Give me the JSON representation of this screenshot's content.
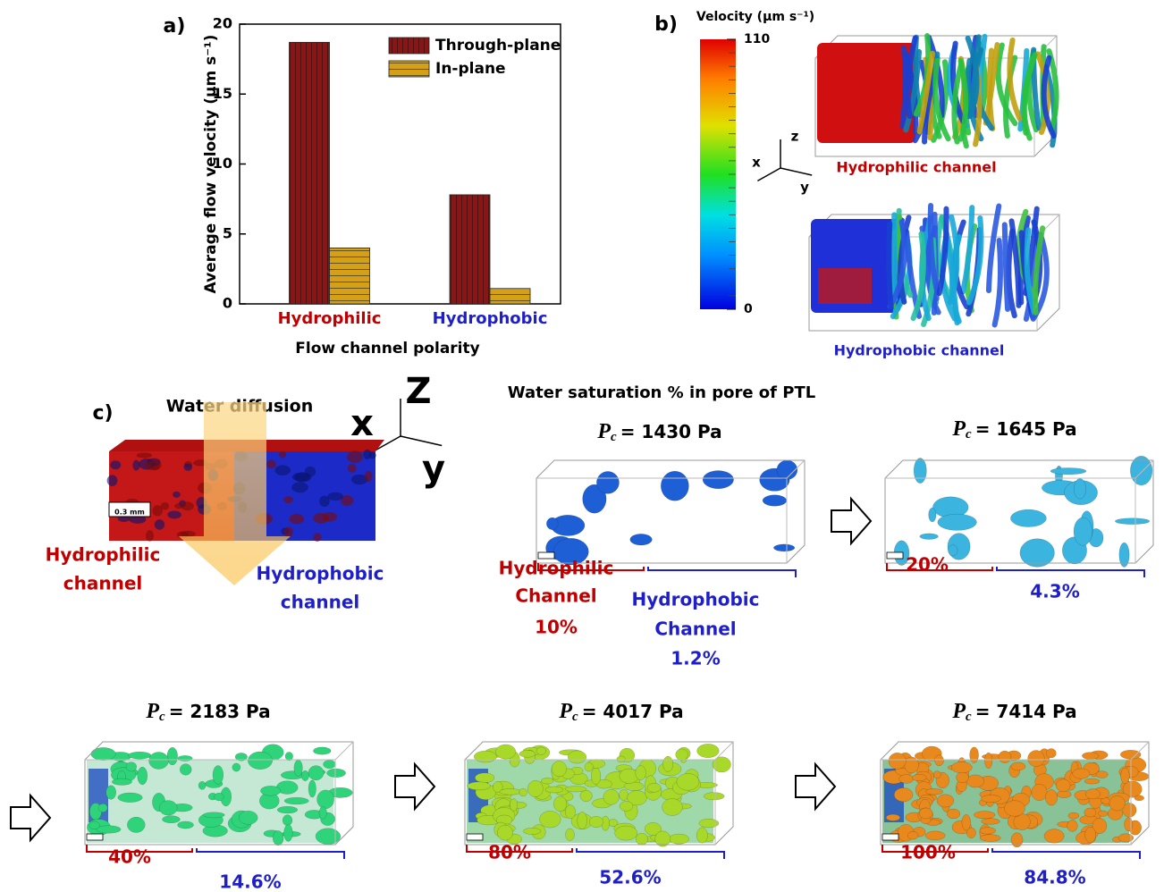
{
  "chart_data": {
    "type": "bar",
    "panel_label": "a)",
    "categories": [
      "Hydrophilic",
      "Hydrophobic"
    ],
    "category_colors": [
      "#c00000",
      "#1f1fc8"
    ],
    "series": [
      {
        "name": "Through-plane",
        "color": "#8b1414",
        "values": [
          18.7,
          7.8
        ]
      },
      {
        "name": "In-plane",
        "color": "#d4a017",
        "values": [
          4.0,
          1.1
        ]
      }
    ],
    "ylabel": "Average flow velocity (μm s⁻¹)",
    "xlabel": "Flow channel polarity",
    "ylim": [
      0,
      20
    ],
    "yticks": [
      0,
      5,
      10,
      15,
      20
    ],
    "legend": "upper-right"
  },
  "panel_b": {
    "panel_label": "b)",
    "colorbar_title": "Velocity (μm s⁻¹)",
    "colorbar_ticks": [
      0,
      110
    ],
    "axes": [
      "z",
      "x",
      "y"
    ],
    "top_label": "Hydrophilic channel",
    "bottom_label": "Hydrophobic channel"
  },
  "panel_c": {
    "panel_label": "c)",
    "diffusion_label": "Water diffusion",
    "axes": [
      "x",
      "Z",
      "y"
    ],
    "scale_label": "0.3 mm",
    "hydrophilic_label": [
      "Hydrophilic",
      "channel"
    ],
    "hydrophobic_label": [
      "Hydrophobic",
      "channel"
    ],
    "title": "Water saturation % in pore of PTL",
    "first_labels": {
      "hydrophilic": [
        "Hydrophilic",
        "Channel"
      ],
      "hydrophobic": [
        "Hydrophobic",
        "Channel"
      ]
    },
    "stages": [
      {
        "symbol": "P",
        "subscript": "c",
        "pressure": "= 1430 Pa",
        "hydrophilic": "10%",
        "hydrophobic": "1.2%",
        "color": "#1e5fd6"
      },
      {
        "symbol": "P",
        "subscript": "c",
        "pressure": "= 1645 Pa",
        "hydrophilic": "20%",
        "hydrophobic": "4.3%",
        "color": "#3cb4e0"
      },
      {
        "symbol": "P",
        "subscript": "c",
        "pressure": "= 2183 Pa",
        "hydrophilic": "40%",
        "hydrophobic": "14.6%",
        "color": "#2fd47a"
      },
      {
        "symbol": "P",
        "subscript": "c",
        "pressure": "= 4017 Pa",
        "hydrophilic": "80%",
        "hydrophobic": "52.6%",
        "color": "#a8d82a"
      },
      {
        "symbol": "P",
        "subscript": "c",
        "pressure": "= 7414 Pa",
        "hydrophilic": "100%",
        "hydrophobic": "84.8%",
        "color": "#e8891e"
      }
    ]
  }
}
